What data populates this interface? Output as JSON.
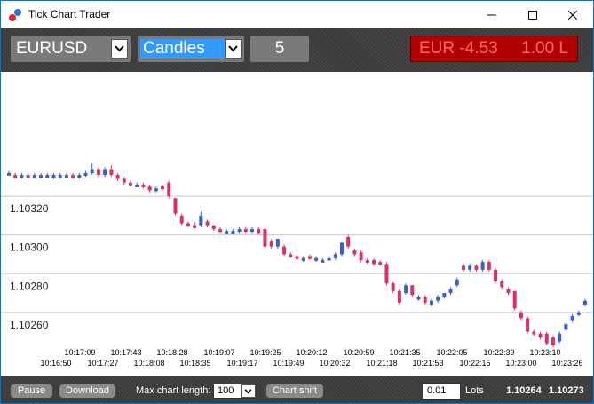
{
  "window": {
    "title": "Tick Chart Trader",
    "controls": {
      "minimize": "—",
      "maximize": "☐",
      "close": "✕"
    }
  },
  "toolbar": {
    "symbol": "EURUSD",
    "chart_type": "Candles",
    "ticks_per_bar": "5",
    "pnl": "EUR -4.53",
    "position_lots": "1.00 L"
  },
  "bottom": {
    "pause_label": "Pause",
    "download_label": "Download",
    "max_chart_length_label": "Max chart length:",
    "max_chart_length_value": "100",
    "chart_shift_label": "Chart shift",
    "lots_value": "0.01",
    "lots_label": "Lots",
    "bid": "1.10264",
    "ask": "1.10273"
  },
  "colors": {
    "up": "#3b5fc8",
    "down": "#d4336a",
    "toolbar_bg": "#3a3a3a",
    "pnl_bg": "#b20000",
    "select_highlight": "#3399ff"
  },
  "chart_data": {
    "type": "candlestick",
    "y_ticks": [
      "1.10320",
      "1.10300",
      "1.10280",
      "1.10260"
    ],
    "y_tick_values": [
      1.1032,
      1.103,
      1.1028,
      1.1026
    ],
    "ylim": [
      1.10248,
      1.10382
    ],
    "x_ticks_upper": [
      "10:17:09",
      "10:17:43",
      "10:18:28",
      "10:19:07",
      "10:19:25",
      "10:20:12",
      "10:20:59",
      "10:21:35",
      "10:22:05",
      "10:22:39",
      "10:23:10"
    ],
    "x_ticks_lower": [
      "10:16:50",
      "10:17:27",
      "10:18:08",
      "10:18:35",
      "10:19:17",
      "10:19:49",
      "10:20:32",
      "10:21:18",
      "10:21:53",
      "10:22:15",
      "10:23:00",
      "10:23:26"
    ],
    "candles": [
      {
        "o": 1.10338,
        "c": 1.10338,
        "h": 1.10339,
        "l": 1.10337
      },
      {
        "o": 1.10337,
        "c": 1.10336,
        "h": 1.10338,
        "l": 1.10335
      },
      {
        "o": 1.10336,
        "c": 1.10337,
        "h": 1.10338,
        "l": 1.10335
      },
      {
        "o": 1.10337,
        "c": 1.10336,
        "h": 1.10338,
        "l": 1.10335
      },
      {
        "o": 1.10336,
        "c": 1.10337,
        "h": 1.10338,
        "l": 1.10335
      },
      {
        "o": 1.10336,
        "c": 1.10337,
        "h": 1.10338,
        "l": 1.10335
      },
      {
        "o": 1.10337,
        "c": 1.10337,
        "h": 1.10338,
        "l": 1.10336
      },
      {
        "o": 1.10336,
        "c": 1.10337,
        "h": 1.10338,
        "l": 1.10335
      },
      {
        "o": 1.10336,
        "c": 1.10337,
        "h": 1.10338,
        "l": 1.10335
      },
      {
        "o": 1.10337,
        "c": 1.10337,
        "h": 1.10338,
        "l": 1.10336
      },
      {
        "o": 1.10337,
        "c": 1.10336,
        "h": 1.10338,
        "l": 1.10335
      },
      {
        "o": 1.10336,
        "c": 1.10337,
        "h": 1.10338,
        "l": 1.10335
      },
      {
        "o": 1.10337,
        "c": 1.10338,
        "h": 1.10339,
        "l": 1.10336
      },
      {
        "o": 1.10338,
        "c": 1.1034,
        "h": 1.10343,
        "l": 1.10337
      },
      {
        "o": 1.1034,
        "c": 1.10337,
        "h": 1.10341,
        "l": 1.10336
      },
      {
        "o": 1.10337,
        "c": 1.1034,
        "h": 1.10341,
        "l": 1.10336
      },
      {
        "o": 1.1034,
        "c": 1.10337,
        "h": 1.10342,
        "l": 1.10336
      },
      {
        "o": 1.10337,
        "c": 1.10335,
        "h": 1.10338,
        "l": 1.10334
      },
      {
        "o": 1.10335,
        "c": 1.10333,
        "h": 1.10336,
        "l": 1.10332
      },
      {
        "o": 1.10333,
        "c": 1.10332,
        "h": 1.10334,
        "l": 1.10331
      },
      {
        "o": 1.10332,
        "c": 1.10332,
        "h": 1.10333,
        "l": 1.10331
      },
      {
        "o": 1.10332,
        "c": 1.10331,
        "h": 1.10333,
        "l": 1.1033
      },
      {
        "o": 1.10331,
        "c": 1.10329,
        "h": 1.10332,
        "l": 1.10328
      },
      {
        "o": 1.10329,
        "c": 1.1033,
        "h": 1.10331,
        "l": 1.10328
      },
      {
        "o": 1.10331,
        "c": 1.1033,
        "h": 1.10332,
        "l": 1.10329
      },
      {
        "o": 1.10333,
        "c": 1.10326,
        "h": 1.10334,
        "l": 1.10325
      },
      {
        "o": 1.10325,
        "c": 1.10317,
        "h": 1.10325,
        "l": 1.10316
      },
      {
        "o": 1.10316,
        "c": 1.10312,
        "h": 1.10317,
        "l": 1.10311
      },
      {
        "o": 1.10312,
        "c": 1.10311,
        "h": 1.10313,
        "l": 1.1031
      },
      {
        "o": 1.10311,
        "c": 1.1031,
        "h": 1.10313,
        "l": 1.10309
      },
      {
        "o": 1.10311,
        "c": 1.10316,
        "h": 1.10318,
        "l": 1.1031
      },
      {
        "o": 1.10313,
        "c": 1.10311,
        "h": 1.10314,
        "l": 1.1031
      },
      {
        "o": 1.10311,
        "c": 1.10309,
        "h": 1.10311,
        "l": 1.10308
      },
      {
        "o": 1.10309,
        "c": 1.10308,
        "h": 1.1031,
        "l": 1.10307
      },
      {
        "o": 1.10308,
        "c": 1.10308,
        "h": 1.10309,
        "l": 1.10307
      },
      {
        "o": 1.10308,
        "c": 1.10308,
        "h": 1.10309,
        "l": 1.10307
      },
      {
        "o": 1.10308,
        "c": 1.10309,
        "h": 1.1031,
        "l": 1.10307
      },
      {
        "o": 1.10309,
        "c": 1.10308,
        "h": 1.1031,
        "l": 1.10307
      },
      {
        "o": 1.10308,
        "c": 1.10309,
        "h": 1.1031,
        "l": 1.10307
      },
      {
        "o": 1.10309,
        "c": 1.10307,
        "h": 1.1031,
        "l": 1.10306
      },
      {
        "o": 1.10309,
        "c": 1.103,
        "h": 1.1031,
        "l": 1.10299
      },
      {
        "o": 1.10303,
        "c": 1.103,
        "h": 1.10304,
        "l": 1.10299
      },
      {
        "o": 1.103,
        "c": 1.10304,
        "h": 1.10304,
        "l": 1.10299
      },
      {
        "o": 1.103,
        "c": 1.10296,
        "h": 1.10301,
        "l": 1.10295
      },
      {
        "o": 1.10296,
        "c": 1.10295,
        "h": 1.10297,
        "l": 1.10294
      },
      {
        "o": 1.10295,
        "c": 1.10294,
        "h": 1.10296,
        "l": 1.10293
      },
      {
        "o": 1.10293,
        "c": 1.10294,
        "h": 1.10295,
        "l": 1.10292
      },
      {
        "o": 1.10295,
        "c": 1.10294,
        "h": 1.10296,
        "l": 1.10293
      },
      {
        "o": 1.10293,
        "c": 1.10294,
        "h": 1.10295,
        "l": 1.10292
      },
      {
        "o": 1.10293,
        "c": 1.10293,
        "h": 1.10294,
        "l": 1.10292
      },
      {
        "o": 1.10293,
        "c": 1.10294,
        "h": 1.10295,
        "l": 1.10292
      },
      {
        "o": 1.10294,
        "c": 1.10296,
        "h": 1.10297,
        "l": 1.10293
      },
      {
        "o": 1.10296,
        "c": 1.10302,
        "h": 1.10302,
        "l": 1.10295
      },
      {
        "o": 1.10305,
        "c": 1.103,
        "h": 1.10306,
        "l": 1.10299
      },
      {
        "o": 1.10298,
        "c": 1.10296,
        "h": 1.10299,
        "l": 1.10295
      },
      {
        "o": 1.10297,
        "c": 1.10293,
        "h": 1.10298,
        "l": 1.10292
      },
      {
        "o": 1.10293,
        "c": 1.10292,
        "h": 1.10294,
        "l": 1.10291
      },
      {
        "o": 1.10293,
        "c": 1.10291,
        "h": 1.10294,
        "l": 1.1029
      },
      {
        "o": 1.10292,
        "c": 1.10291,
        "h": 1.10293,
        "l": 1.1029
      },
      {
        "o": 1.10291,
        "c": 1.10281,
        "h": 1.10292,
        "l": 1.1028
      },
      {
        "o": 1.10281,
        "c": 1.10277,
        "h": 1.10282,
        "l": 1.10276
      },
      {
        "o": 1.10277,
        "c": 1.10271,
        "h": 1.10278,
        "l": 1.1027
      },
      {
        "o": 1.10276,
        "c": 1.1028,
        "h": 1.10281,
        "l": 1.10275
      },
      {
        "o": 1.1028,
        "c": 1.10275,
        "h": 1.1028,
        "l": 1.10274
      },
      {
        "o": 1.10273,
        "c": 1.10274,
        "h": 1.10275,
        "l": 1.10272
      },
      {
        "o": 1.10274,
        "c": 1.10271,
        "h": 1.10275,
        "l": 1.1027
      },
      {
        "o": 1.1027,
        "c": 1.10272,
        "h": 1.10273,
        "l": 1.10269
      },
      {
        "o": 1.10272,
        "c": 1.10274,
        "h": 1.10275,
        "l": 1.10271
      },
      {
        "o": 1.10274,
        "c": 1.10276,
        "h": 1.10276,
        "l": 1.10273
      },
      {
        "o": 1.10276,
        "c": 1.10278,
        "h": 1.10279,
        "l": 1.10275
      },
      {
        "o": 1.1028,
        "c": 1.10283,
        "h": 1.10284,
        "l": 1.10279
      },
      {
        "o": 1.1029,
        "c": 1.10288,
        "h": 1.10291,
        "l": 1.10287
      },
      {
        "o": 1.10288,
        "c": 1.1029,
        "h": 1.10291,
        "l": 1.10287
      },
      {
        "o": 1.1029,
        "c": 1.10288,
        "h": 1.10291,
        "l": 1.10287
      },
      {
        "o": 1.10288,
        "c": 1.10292,
        "h": 1.10293,
        "l": 1.10287
      },
      {
        "o": 1.10292,
        "c": 1.10288,
        "h": 1.10293,
        "l": 1.10287
      },
      {
        "o": 1.10288,
        "c": 1.10282,
        "h": 1.10289,
        "l": 1.10281
      },
      {
        "o": 1.10282,
        "c": 1.10279,
        "h": 1.10283,
        "l": 1.10278
      },
      {
        "o": 1.10278,
        "c": 1.10276,
        "h": 1.10279,
        "l": 1.10275
      },
      {
        "o": 1.10277,
        "c": 1.10268,
        "h": 1.10277,
        "l": 1.10267
      },
      {
        "o": 1.10266,
        "c": 1.10263,
        "h": 1.10267,
        "l": 1.10262
      },
      {
        "o": 1.10263,
        "c": 1.10256,
        "h": 1.10264,
        "l": 1.10255
      },
      {
        "o": 1.10256,
        "c": 1.10255,
        "h": 1.10257,
        "l": 1.10254
      },
      {
        "o": 1.10255,
        "c": 1.10253,
        "h": 1.10256,
        "l": 1.10252
      },
      {
        "o": 1.10255,
        "c": 1.1025,
        "h": 1.10256,
        "l": 1.10249
      },
      {
        "o": 1.10253,
        "c": 1.10249,
        "h": 1.10254,
        "l": 1.10248
      },
      {
        "o": 1.10251,
        "c": 1.10255,
        "h": 1.10256,
        "l": 1.1025
      },
      {
        "o": 1.10257,
        "c": 1.1026,
        "h": 1.10261,
        "l": 1.10256
      },
      {
        "o": 1.10262,
        "c": 1.10264,
        "h": 1.10265,
        "l": 1.10261
      },
      {
        "o": 1.10265,
        "c": 1.10266,
        "h": 1.10267,
        "l": 1.10264
      },
      {
        "o": 1.1027,
        "c": 1.10272,
        "h": 1.10273,
        "l": 1.10269
      }
    ]
  }
}
